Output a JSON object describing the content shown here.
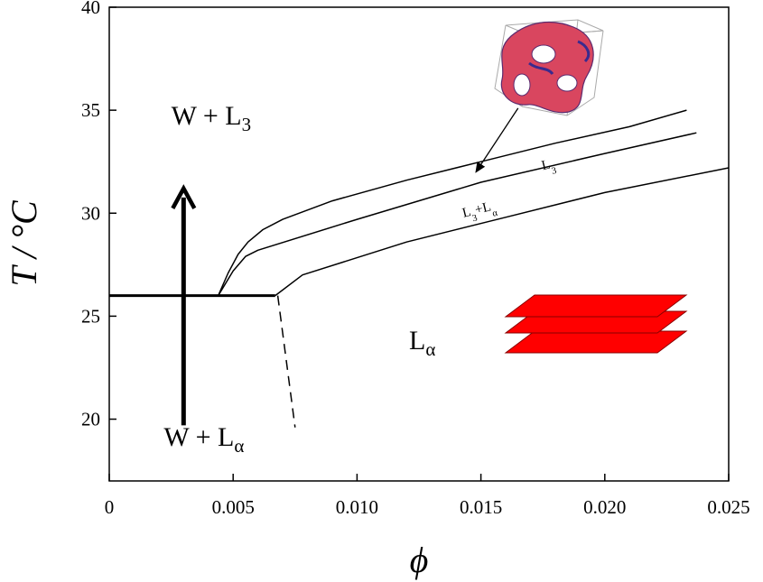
{
  "chart_data": {
    "type": "line",
    "title": "",
    "xlabel": "ϕ",
    "ylabel": "T / °C",
    "xlim": [
      0,
      0.025
    ],
    "ylim": [
      17,
      40
    ],
    "x_ticks": [
      0,
      0.005,
      0.01,
      0.015,
      0.02,
      0.025
    ],
    "x_tick_labels": [
      "0",
      "0.005",
      "0.010",
      "0.015",
      "0.020",
      "0.025"
    ],
    "y_ticks": [
      20,
      25,
      30,
      35,
      40
    ],
    "y_tick_labels": [
      "20",
      "25",
      "30",
      "35",
      "40"
    ],
    "grid": false,
    "series": [
      {
        "style": "solid",
        "width": 3,
        "points": [
          [
            0,
            26
          ],
          [
            0.0044,
            26
          ],
          [
            0.0067,
            26
          ]
        ]
      },
      {
        "style": "solid",
        "width": 1.5,
        "points": [
          [
            0.0044,
            26
          ],
          [
            0.0048,
            27.1
          ],
          [
            0.0052,
            28.0
          ],
          [
            0.0056,
            28.6
          ],
          [
            0.0062,
            29.2
          ],
          [
            0.007,
            29.7
          ],
          [
            0.009,
            30.6
          ],
          [
            0.012,
            31.6
          ],
          [
            0.015,
            32.5
          ],
          [
            0.018,
            33.4
          ],
          [
            0.021,
            34.2
          ],
          [
            0.0233,
            35.0
          ]
        ]
      },
      {
        "style": "solid",
        "width": 1.5,
        "points": [
          [
            0.0044,
            26
          ],
          [
            0.005,
            27.2
          ],
          [
            0.0055,
            27.9
          ],
          [
            0.006,
            28.2
          ],
          [
            0.01,
            29.7
          ],
          [
            0.015,
            31.5
          ],
          [
            0.02,
            32.9
          ],
          [
            0.0237,
            33.9
          ]
        ]
      },
      {
        "style": "solid",
        "width": 1.5,
        "points": [
          [
            0.0067,
            26
          ],
          [
            0.0078,
            27.0
          ],
          [
            0.012,
            28.6
          ],
          [
            0.016,
            29.8
          ],
          [
            0.02,
            31.0
          ],
          [
            0.025,
            32.2
          ]
        ]
      },
      {
        "style": "dashed",
        "width": 1.5,
        "points": [
          [
            0.0068,
            26
          ],
          [
            0.0075,
            19.6
          ]
        ]
      }
    ],
    "annotations": [
      {
        "kind": "region",
        "main": "W + L",
        "sub": "3",
        "x": 0.0025,
        "y": 34.3
      },
      {
        "kind": "region",
        "main": "W + L",
        "sub": "α",
        "x": 0.0022,
        "y": 18.7
      },
      {
        "kind": "region",
        "main": "L",
        "sub": "α",
        "x": 0.0121,
        "y": 23.4
      },
      {
        "kind": "curve",
        "main": "L",
        "sub": "3",
        "x": 0.0175,
        "y": 32.1,
        "rotate": -14
      },
      {
        "kind": "curve",
        "main": "L",
        "sub": "3",
        "tail": "+L",
        "sub2": "α",
        "x": 0.0143,
        "y": 29.8,
        "rotate": -14
      },
      {
        "kind": "arrow",
        "from": [
          0.003,
          19.7
        ],
        "to": [
          0.003,
          31.2
        ]
      },
      {
        "kind": "pointer",
        "from": [
          0.0165,
          35.1
        ],
        "to": [
          0.0148,
          32.0
        ]
      }
    ],
    "insets": [
      {
        "name": "bicontinuous-sponge-cube",
        "description_icon": "cube-icon",
        "color": "#d9465f"
      },
      {
        "name": "lamellar-stack",
        "description_icon": "layers-icon",
        "color": "#ff0000"
      }
    ]
  }
}
